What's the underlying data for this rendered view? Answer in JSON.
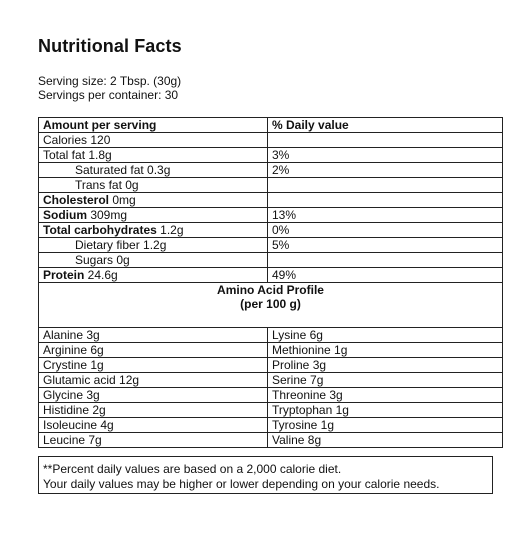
{
  "title": "Nutritional Facts",
  "serving": {
    "size": "Serving size: 2 Tbsp. (30g)",
    "per_container": "Servings per container: 30"
  },
  "table": {
    "header": {
      "left": "Amount per serving",
      "right": "% Daily value"
    },
    "rows": [
      {
        "label": "Calories",
        "value": " 120",
        "bold": false,
        "indent": false,
        "dv": ""
      },
      {
        "label": "Total fat",
        "value": " 1.8g",
        "bold": false,
        "indent": false,
        "dv": "3%"
      },
      {
        "label": "Saturated fat",
        "value": " 0.3g",
        "bold": false,
        "indent": true,
        "dv": "2%"
      },
      {
        "label": "Trans fat",
        "value": " 0g",
        "bold": false,
        "indent": true,
        "dv": ""
      },
      {
        "label": "Cholesterol",
        "value": " 0mg",
        "bold": true,
        "indent": false,
        "dv": ""
      },
      {
        "label": "Sodium",
        "value": " 309mg",
        "bold": true,
        "indent": false,
        "dv": "13%"
      },
      {
        "label": "Total carbohydrates",
        "value": " 1.2g",
        "bold": true,
        "indent": false,
        "dv": "0%"
      },
      {
        "label": "Dietary fiber",
        "value": " 1.2g",
        "bold": false,
        "indent": true,
        "dv": "5%"
      },
      {
        "label": "Sugars",
        "value": " 0g",
        "bold": false,
        "indent": true,
        "dv": ""
      },
      {
        "label": "Protein",
        "value": " 24.6g",
        "bold": true,
        "indent": false,
        "dv": "49%"
      }
    ],
    "amino": {
      "heading": "Amino Acid Profile",
      "subheading": "(per 100 g)",
      "rows": [
        {
          "left": "Alanine 3g",
          "right": "Lysine 6g"
        },
        {
          "left": "Arginine 6g",
          "right": "Methionine 1g"
        },
        {
          "left": "Crystine 1g",
          "right": "Proline 3g"
        },
        {
          "left": "Glutamic acid 12g",
          "right": "Serine 7g"
        },
        {
          "left": "Glycine 3g",
          "right": "Threonine 3g"
        },
        {
          "left": "Histidine 2g",
          "right": "Tryptophan 1g"
        },
        {
          "left": "Isoleucine 4g",
          "right": "Tyrosine 1g"
        },
        {
          "left": "Leucine 7g",
          "right": "Valine 8g"
        }
      ]
    }
  },
  "footnote": {
    "line1": "**Percent daily values are based on a 2,000 calorie diet.",
    "line2": "Your daily values may be higher or lower depending on your calorie needs."
  }
}
